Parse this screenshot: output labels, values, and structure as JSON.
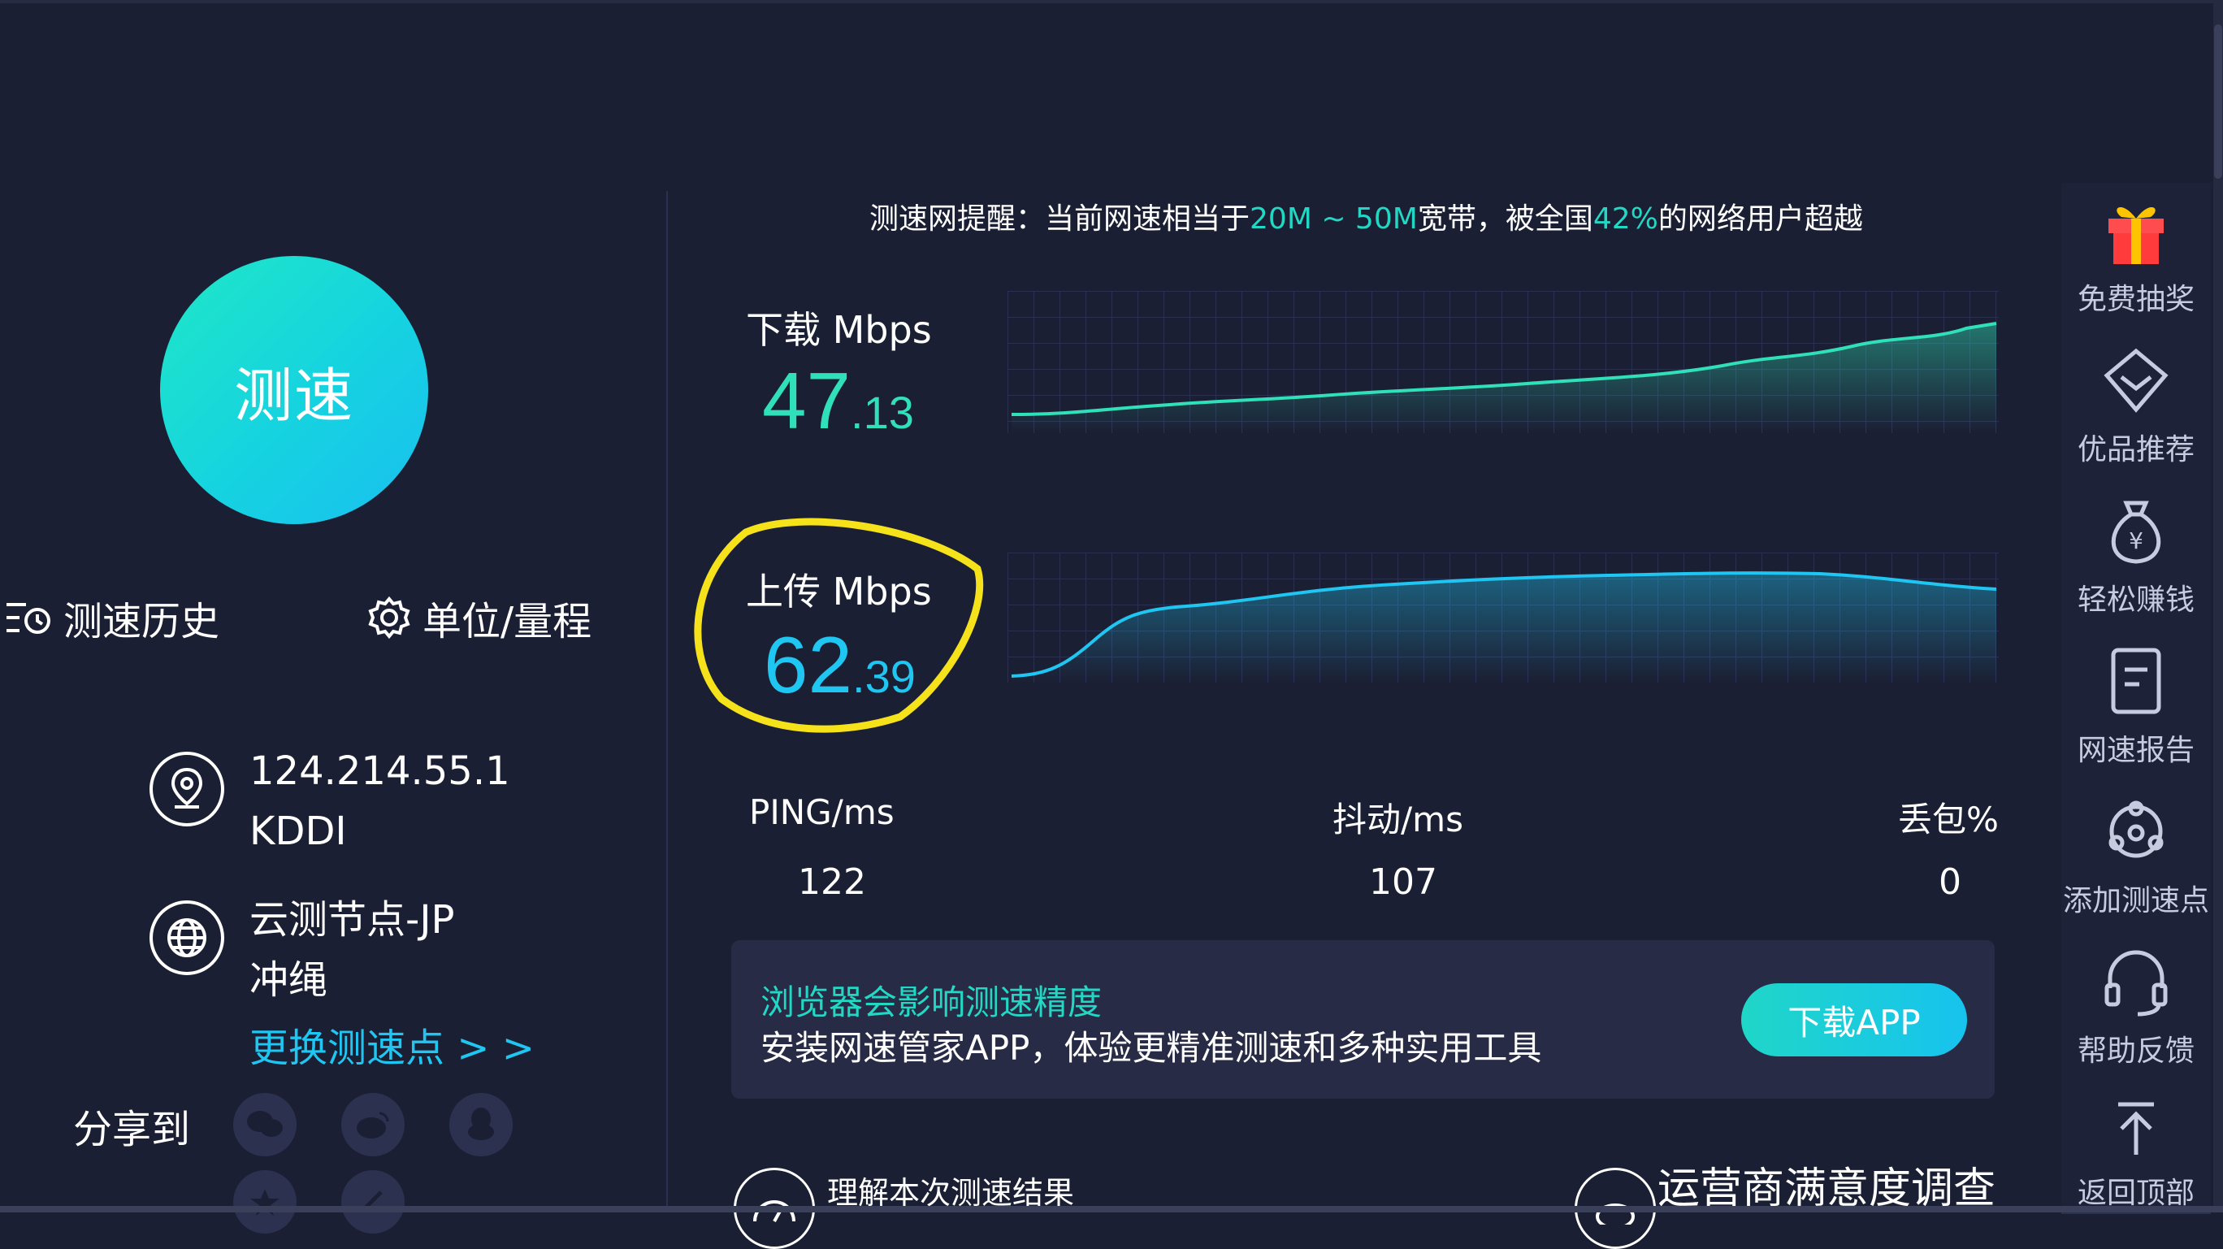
{
  "left": {
    "speed_button": "测速",
    "history": "测速历史",
    "unit": "单位/量程",
    "ip": "124.214.55.1",
    "isp": "KDDI",
    "node": "云测节点-JP",
    "city": "冲绳",
    "change_node": "更换测速点 > >",
    "share_label": "分享到"
  },
  "notice": {
    "prefix": "测速网提醒：当前网速相当于",
    "range": "20M ~ 50M",
    "middle": "宽带，被全国",
    "percent": "42%",
    "suffix": "的网络用户超越"
  },
  "download": {
    "label": "下载 Mbps",
    "int": "47",
    "dec": ".13"
  },
  "upload": {
    "label": "上传 Mbps",
    "int": "62",
    "dec": ".39"
  },
  "stats": {
    "ping_label": "PING/ms",
    "ping": "122",
    "jitter_label": "抖动/ms",
    "jitter": "107",
    "loss_label": "丢包%",
    "loss": "0"
  },
  "promo": {
    "title": "浏览器会影响测速精度",
    "desc": "安装网速管家APP，体验更精准测速和多种实用工具",
    "button": "下载APP"
  },
  "bottom": {
    "understand": "理解本次测速结果",
    "survey": "运营商满意度调查"
  },
  "sidebar": [
    {
      "label": "免费抽奖",
      "icon": "gift-icon"
    },
    {
      "label": "优品推荐",
      "icon": "diamond-icon"
    },
    {
      "label": "轻松赚钱",
      "icon": "money-bag-icon"
    },
    {
      "label": "网速报告",
      "icon": "report-icon"
    },
    {
      "label": "添加测速点",
      "icon": "network-node-icon"
    },
    {
      "label": "帮助反馈",
      "icon": "headset-icon"
    },
    {
      "label": "返回顶部",
      "icon": "back-to-top-icon"
    }
  ],
  "colors": {
    "background": "#1b1f33",
    "accent_green": "#2fe0b8",
    "accent_blue": "#1fc6f2",
    "annotation": "#f5e21a"
  }
}
